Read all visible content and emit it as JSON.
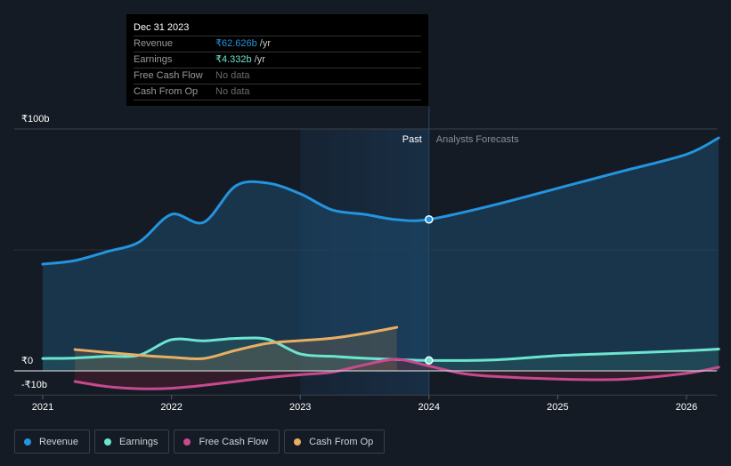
{
  "tooltip": {
    "date": "Dec 31 2023",
    "rows": [
      {
        "label": "Revenue",
        "value": "₹62.626b",
        "unit": "/yr",
        "color": "#2394df"
      },
      {
        "label": "Earnings",
        "value": "₹4.332b",
        "unit": "/yr",
        "color": "#6ce5d0"
      },
      {
        "label": "Free Cash Flow",
        "value": "No data",
        "unit": "",
        "color": ""
      },
      {
        "label": "Cash From Op",
        "value": "No data",
        "unit": "",
        "color": ""
      }
    ]
  },
  "legend": [
    {
      "label": "Revenue",
      "color": "#2394df"
    },
    {
      "label": "Earnings",
      "color": "#6ce5d0"
    },
    {
      "label": "Free Cash Flow",
      "color": "#c74a8e"
    },
    {
      "label": "Cash From Op",
      "color": "#e8ae64"
    }
  ],
  "chart_data": {
    "type": "line",
    "title": "",
    "xlabel": "",
    "ylabel": "",
    "xlim": [
      2021.0,
      2026.25
    ],
    "ylim": [
      -10,
      100
    ],
    "y_ticks": [
      {
        "value": 100,
        "label": "₹100b"
      },
      {
        "value": 0,
        "label": "₹0"
      },
      {
        "value": -10,
        "label": "-₹10b"
      }
    ],
    "x_ticks": [
      {
        "value": 2021,
        "label": "2021"
      },
      {
        "value": 2022,
        "label": "2022"
      },
      {
        "value": 2023,
        "label": "2023"
      },
      {
        "value": 2024,
        "label": "2024"
      },
      {
        "value": 2025,
        "label": "2025"
      },
      {
        "value": 2026,
        "label": "2026"
      }
    ],
    "divider_x": 2024.0,
    "past_label": "Past",
    "forecast_label": "Analysts Forecasts",
    "highlight_x": 2023.0,
    "grid": true,
    "legend_position": "bottom-left",
    "series": [
      {
        "name": "Revenue",
        "color": "#2394df",
        "x": [
          2021.0,
          2021.25,
          2021.5,
          2021.75,
          2022.0,
          2022.25,
          2022.5,
          2022.75,
          2023.0,
          2023.25,
          2023.5,
          2023.75,
          2024.0,
          2024.5,
          2025.0,
          2025.5,
          2026.0,
          2026.25
        ],
        "values": [
          44.1,
          45.6,
          49.3,
          53.3,
          64.7,
          61.4,
          76.5,
          77.6,
          73.2,
          66.5,
          64.7,
          62.5,
          62.6,
          68.5,
          75.5,
          82.5,
          89.5,
          96.3
        ]
      },
      {
        "name": "Earnings",
        "color": "#6ce5d0",
        "x": [
          2021.0,
          2021.25,
          2021.5,
          2021.75,
          2022.0,
          2022.25,
          2022.5,
          2022.75,
          2023.0,
          2023.25,
          2023.5,
          2023.75,
          2024.0,
          2024.5,
          2025.0,
          2025.5,
          2026.0,
          2026.25
        ],
        "values": [
          5.1,
          5.3,
          6.0,
          6.5,
          12.9,
          12.4,
          13.4,
          13.0,
          7.0,
          6.0,
          5.2,
          4.7,
          4.3,
          4.5,
          6.3,
          7.3,
          8.3,
          9.0
        ]
      },
      {
        "name": "Free Cash Flow",
        "color": "#c74a8e",
        "x": [
          2021.25,
          2021.5,
          2021.75,
          2022.0,
          2022.25,
          2022.5,
          2022.75,
          2023.0,
          2023.25,
          2023.5,
          2023.75,
          2024.0,
          2024.25,
          2024.5,
          2025.0,
          2025.5,
          2026.0,
          2026.25
        ],
        "values": [
          -4.4,
          -6.5,
          -7.4,
          -7.2,
          -6.0,
          -4.4,
          -2.8,
          -1.6,
          -0.5,
          2.5,
          4.8,
          2.0,
          -1.0,
          -2.3,
          -3.4,
          -3.5,
          -1.0,
          1.5
        ]
      },
      {
        "name": "Cash From Op",
        "color": "#e8ae64",
        "x": [
          2021.25,
          2021.5,
          2021.75,
          2022.0,
          2022.25,
          2022.5,
          2022.75,
          2023.0,
          2023.25,
          2023.5,
          2023.75
        ],
        "values": [
          8.8,
          7.6,
          6.5,
          5.6,
          5.1,
          8.5,
          11.4,
          12.5,
          13.5,
          15.5,
          18.0
        ]
      }
    ],
    "markers": [
      {
        "series": "Revenue",
        "x": 2024.0,
        "value": 62.6
      },
      {
        "series": "Earnings",
        "x": 2024.0,
        "value": 4.3
      }
    ]
  }
}
